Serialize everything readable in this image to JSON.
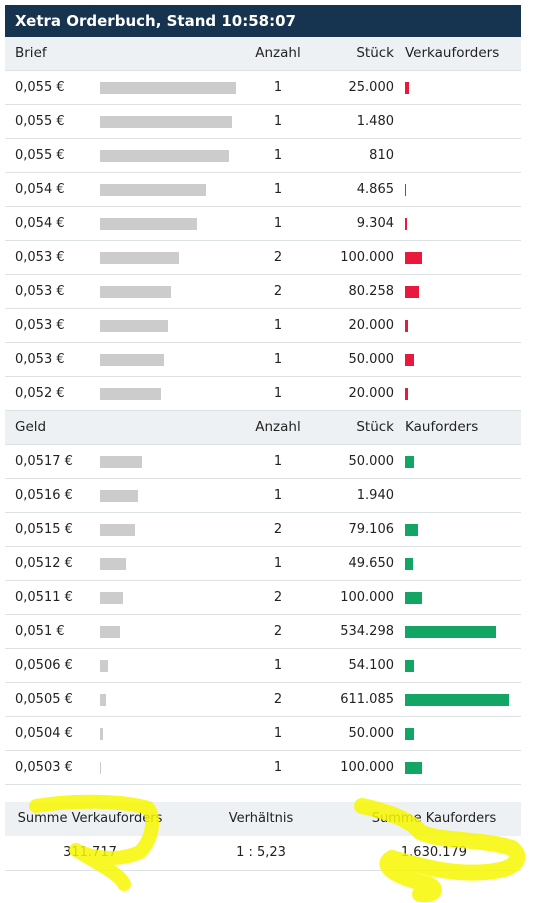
{
  "title": "Xetra Orderbuch, Stand 10:58:07",
  "ask_header": {
    "price": "Brief",
    "count": "Anzahl",
    "qty": "Stück",
    "orders": "Verkauforders"
  },
  "asks": [
    {
      "price": "0,055 €",
      "count": "1",
      "qty": "25.000",
      "depth": 1.0,
      "bar": 0.041
    },
    {
      "price": "0,055 €",
      "count": "1",
      "qty": "1.480",
      "depth": 0.971,
      "bar": 0.0024
    },
    {
      "price": "0,055 €",
      "count": "1",
      "qty": "810",
      "depth": 0.949,
      "bar": 0.0013
    },
    {
      "price": "0,054 €",
      "count": "1",
      "qty": "4.865",
      "depth": 0.779,
      "bar": 0.008
    },
    {
      "price": "0,054 €",
      "count": "1",
      "qty": "9.304",
      "depth": 0.713,
      "bar": 0.015
    },
    {
      "price": "0,053 €",
      "count": "2",
      "qty": "100.000",
      "depth": 0.581,
      "bar": 0.164
    },
    {
      "price": "0,053 €",
      "count": "2",
      "qty": "80.258",
      "depth": 0.522,
      "bar": 0.131
    },
    {
      "price": "0,053 €",
      "count": "1",
      "qty": "20.000",
      "depth": 0.5,
      "bar": 0.033
    },
    {
      "price": "0,053 €",
      "count": "1",
      "qty": "50.000",
      "depth": 0.471,
      "bar": 0.082
    },
    {
      "price": "0,052 €",
      "count": "1",
      "qty": "20.000",
      "depth": 0.449,
      "bar": 0.033
    }
  ],
  "bid_header": {
    "price": "Geld",
    "count": "Anzahl",
    "qty": "Stück",
    "orders": "Kauforders"
  },
  "bids": [
    {
      "price": "0,0517 €",
      "count": "1",
      "qty": "50.000",
      "depth": 0.309,
      "bar": 0.082
    },
    {
      "price": "0,0516 €",
      "count": "1",
      "qty": "1.940",
      "depth": 0.279,
      "bar": 0.003
    },
    {
      "price": "0,0515 €",
      "count": "2",
      "qty": "79.106",
      "depth": 0.257,
      "bar": 0.129
    },
    {
      "price": "0,0512 €",
      "count": "1",
      "qty": "49.650",
      "depth": 0.191,
      "bar": 0.081
    },
    {
      "price": "0,0511 €",
      "count": "2",
      "qty": "100.000",
      "depth": 0.169,
      "bar": 0.164
    },
    {
      "price": "0,051 €",
      "count": "2",
      "qty": "534.298",
      "depth": 0.147,
      "bar": 0.874
    },
    {
      "price": "0,0506 €",
      "count": "1",
      "qty": "54.100",
      "depth": 0.059,
      "bar": 0.089
    },
    {
      "price": "0,0505 €",
      "count": "2",
      "qty": "611.085",
      "depth": 0.044,
      "bar": 1.0
    },
    {
      "price": "0,0504 €",
      "count": "1",
      "qty": "50.000",
      "depth": 0.022,
      "bar": 0.082
    },
    {
      "price": "0,0503 €",
      "count": "1",
      "qty": "100.000",
      "depth": 0.007,
      "bar": 0.164
    }
  ],
  "summary": {
    "sell_label": "Summe Verkauforders",
    "ratio_label": "Verhältnis",
    "buy_label": "Summe Kauforders",
    "sell_value": "311.717",
    "ratio_value": "1 : 5,23",
    "buy_value": "1.630.179"
  },
  "colors": {
    "header_bg": "#16344f",
    "sell": "#e8193c",
    "buy": "#12a563",
    "depth": "#cccccc",
    "highlight": "#f7f700"
  }
}
